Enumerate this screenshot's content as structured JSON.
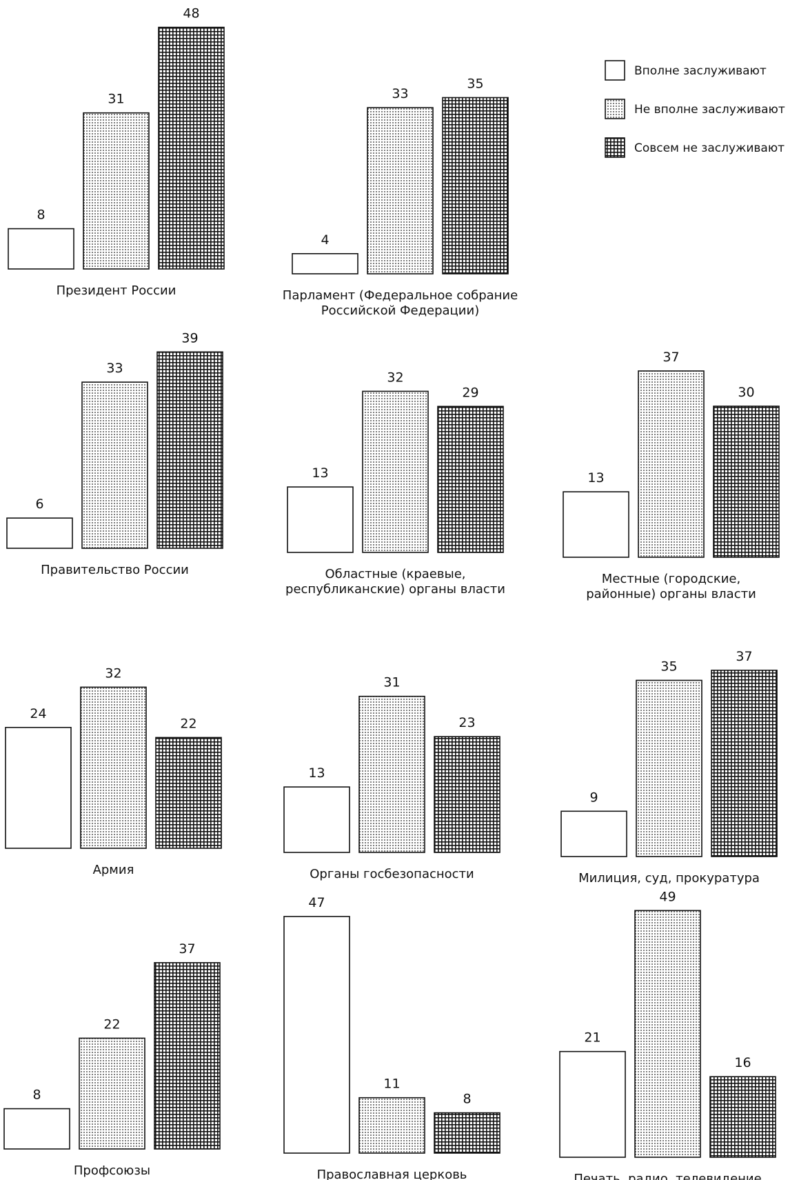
{
  "chart_data": {
    "type": "bar",
    "unit_hint": "",
    "series": [
      {
        "name": "Вполне заслуживают",
        "pattern": "blank"
      },
      {
        "name": "Не вполне заслуживают",
        "pattern": "dots"
      },
      {
        "name": "Совсем не заслуживают",
        "pattern": "grid"
      }
    ],
    "legend_position": "top-right",
    "panels": [
      {
        "title_lines": [
          "Президент России"
        ],
        "values": [
          8,
          31,
          48
        ]
      },
      {
        "title_lines": [
          "Парламент (Федеральное собрание",
          "Российской Федерации)"
        ],
        "values": [
          4,
          33,
          35
        ]
      },
      {
        "title_lines": [
          "Правительство России"
        ],
        "values": [
          6,
          33,
          39
        ]
      },
      {
        "title_lines": [
          "Областные (краевые,",
          "республиканские) органы власти"
        ],
        "values": [
          13,
          32,
          29
        ]
      },
      {
        "title_lines": [
          "Местные (городские,",
          "районные) органы власти"
        ],
        "values": [
          13,
          37,
          30
        ]
      },
      {
        "title_lines": [
          "Армия"
        ],
        "values": [
          24,
          32,
          22
        ]
      },
      {
        "title_lines": [
          "Органы госбезопасности"
        ],
        "values": [
          13,
          31,
          23
        ]
      },
      {
        "title_lines": [
          "Милиция, суд, прокуратура"
        ],
        "values": [
          9,
          35,
          37
        ]
      },
      {
        "title_lines": [
          "Профсоюзы"
        ],
        "values": [
          8,
          22,
          37
        ]
      },
      {
        "title_lines": [
          "Православная церковь"
        ],
        "values": [
          47,
          11,
          8
        ]
      },
      {
        "title_lines": [
          "Печать, радио, телевидение"
        ],
        "values": [
          21,
          49,
          16
        ]
      }
    ]
  },
  "colors": {
    "ink": "#111111",
    "background": "#ffffff",
    "dots_fill": "#ffffff",
    "grid_fill": "#ffffff"
  }
}
